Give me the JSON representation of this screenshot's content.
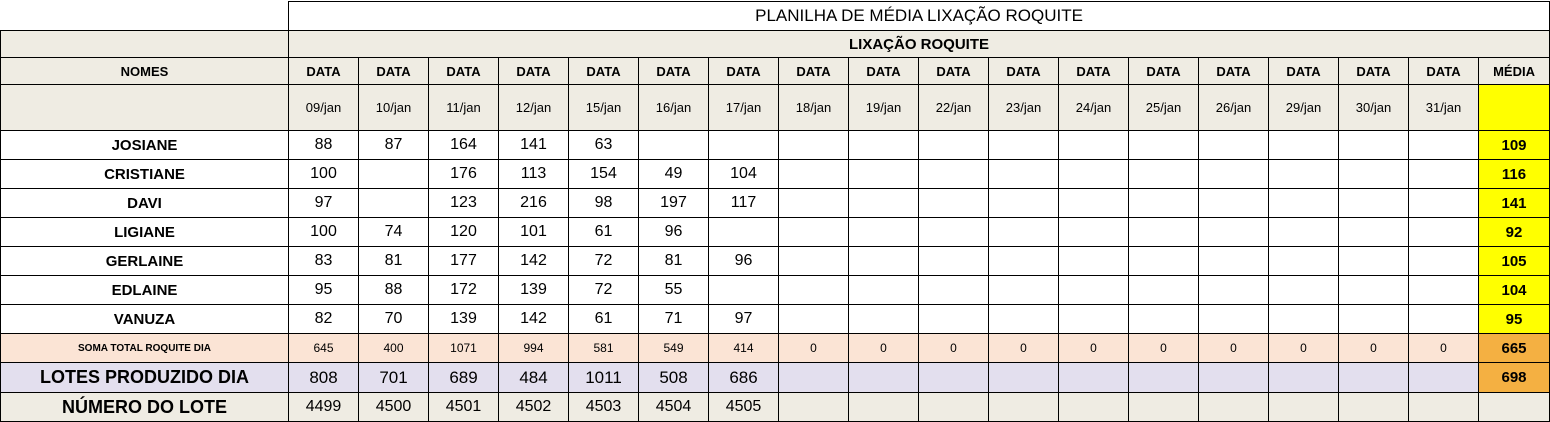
{
  "title": "PLANILHA DE MÉDIA LIXAÇÃO ROQUITE",
  "subtitle": "LIXAÇÃO ROQUITE",
  "headers": {
    "names": "NOMES",
    "data": "DATA",
    "media": "MÉDIA"
  },
  "dates": [
    "09/jan",
    "10/jan",
    "11/jan",
    "12/jan",
    "15/jan",
    "16/jan",
    "17/jan",
    "18/jan",
    "19/jan",
    "22/jan",
    "23/jan",
    "24/jan",
    "25/jan",
    "26/jan",
    "29/jan",
    "30/jan",
    "31/jan"
  ],
  "employees": [
    {
      "name": "JOSIANE",
      "values": [
        "88",
        "87",
        "164",
        "141",
        "63",
        "",
        "",
        "",
        "",
        "",
        "",
        "",
        "",
        "",
        "",
        "",
        ""
      ],
      "media": "109"
    },
    {
      "name": "CRISTIANE",
      "values": [
        "100",
        "",
        "176",
        "113",
        "154",
        "49",
        "104",
        "",
        "",
        "",
        "",
        "",
        "",
        "",
        "",
        "",
        ""
      ],
      "media": "116"
    },
    {
      "name": "DAVI",
      "values": [
        "97",
        "",
        "123",
        "216",
        "98",
        "197",
        "117",
        "",
        "",
        "",
        "",
        "",
        "",
        "",
        "",
        "",
        ""
      ],
      "media": "141"
    },
    {
      "name": "LIGIANE",
      "values": [
        "100",
        "74",
        "120",
        "101",
        "61",
        "96",
        "",
        "",
        "",
        "",
        "",
        "",
        "",
        "",
        "",
        "",
        ""
      ],
      "media": "92"
    },
    {
      "name": "GERLAINE",
      "values": [
        "83",
        "81",
        "177",
        "142",
        "72",
        "81",
        "96",
        "",
        "",
        "",
        "",
        "",
        "",
        "",
        "",
        "",
        ""
      ],
      "media": "105"
    },
    {
      "name": "EDLAINE",
      "values": [
        "95",
        "88",
        "172",
        "139",
        "72",
        "55",
        "",
        "",
        "",
        "",
        "",
        "",
        "",
        "",
        "",
        "",
        ""
      ],
      "media": "104"
    },
    {
      "name": "VANUZA",
      "values": [
        "82",
        "70",
        "139",
        "142",
        "61",
        "71",
        "97",
        "",
        "",
        "",
        "",
        "",
        "",
        "",
        "",
        "",
        ""
      ],
      "media": "95"
    }
  ],
  "soma": {
    "label": "SOMA TOTAL  ROQUITE DIA",
    "values": [
      "645",
      "400",
      "1071",
      "994",
      "581",
      "549",
      "414",
      "0",
      "0",
      "0",
      "0",
      "0",
      "0",
      "0",
      "0",
      "0",
      "0"
    ],
    "media": "665"
  },
  "lotes": {
    "label": "LOTES PRODUZIDO DIA",
    "values": [
      "808",
      "701",
      "689",
      "484",
      "1011",
      "508",
      "686",
      "",
      "",
      "",
      "",
      "",
      "",
      "",
      "",
      "",
      ""
    ],
    "media": "698"
  },
  "numero": {
    "label": "NÚMERO DO LOTE",
    "values": [
      "4499",
      "4500",
      "4501",
      "4502",
      "4503",
      "4504",
      "4505",
      "",
      "",
      "",
      "",
      "",
      "",
      "",
      "",
      "",
      ""
    ],
    "media": ""
  },
  "colors": {
    "header_bg": "#efece3",
    "media_yellow": "#ffff00",
    "media_orange": "#f4b042",
    "soma_bg": "#fbe4d5",
    "lotes_bg": "#e3dfee"
  }
}
